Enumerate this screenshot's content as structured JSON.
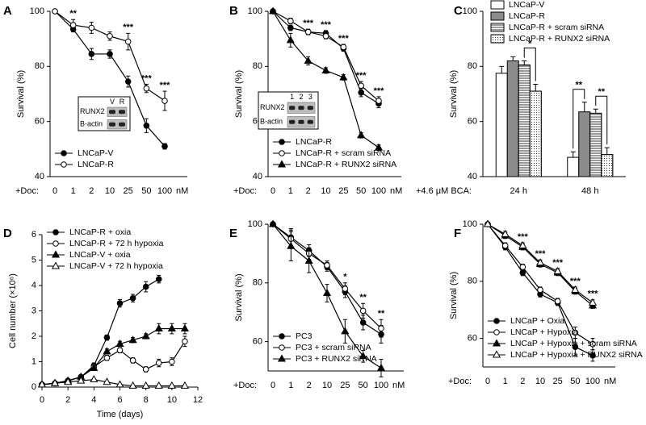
{
  "chart_data": [
    {
      "type": "line",
      "panel_label": "A",
      "categories": [
        "0",
        "1",
        "2",
        "10",
        "25",
        "50",
        "100"
      ],
      "x_prefix": "+Doc:",
      "x_unit": "nM",
      "ylabel": "Survival (%)",
      "ylim": [
        40,
        100
      ],
      "yticks": [
        40,
        60,
        80,
        100
      ],
      "series": [
        {
          "name": "LNCaP-V",
          "color": "#000000",
          "marker": "circle",
          "filled": true,
          "values": [
            100,
            93.5,
            84.5,
            84.5,
            74.5,
            58.5,
            51
          ],
          "errors": [
            0,
            1,
            2,
            1.5,
            2,
            2.5,
            1
          ]
        },
        {
          "name": "LNCaP-R",
          "color": "#000000",
          "marker": "circle",
          "filled": false,
          "values": [
            100,
            95,
            94,
            91,
            89,
            72,
            67.5
          ],
          "errors": [
            0,
            2,
            2,
            1.5,
            3,
            1.5,
            3.5
          ]
        }
      ],
      "significance": [
        null,
        "**",
        null,
        null,
        "***",
        "***",
        "***"
      ],
      "legend_position": "lower left",
      "inset": {
        "rows": [
          "RUNX2",
          "B-actin"
        ],
        "columns": [
          "V",
          "R"
        ]
      }
    },
    {
      "type": "line",
      "panel_label": "B",
      "categories": [
        "0",
        "1",
        "2",
        "10",
        "25",
        "50",
        "100"
      ],
      "x_prefix": "+Doc:",
      "x_unit": "nM",
      "ylabel": "Survival (%)",
      "ylim": [
        40,
        100
      ],
      "yticks": [
        40,
        60,
        80,
        100
      ],
      "series": [
        {
          "name": "LNCaP-R",
          "color": "#000000",
          "marker": "circle",
          "filled": true,
          "values": [
            100,
            94,
            92.5,
            92,
            86.5,
            70.5,
            66.5
          ],
          "errors": [
            0,
            1,
            1,
            1,
            1,
            1.5,
            1.5
          ]
        },
        {
          "name": "LNCaP-R + scram siRNA",
          "color": "#000000",
          "marker": "circle",
          "filled": false,
          "values": [
            100,
            96.5,
            92.5,
            91,
            87,
            73,
            67.5
          ],
          "errors": [
            0,
            1,
            1,
            1,
            1,
            1.5,
            1.5
          ]
        },
        {
          "name": "LNCaP-R + RUNX2 siRNA",
          "color": "#000000",
          "marker": "triangle",
          "filled": true,
          "values": [
            100,
            89.5,
            82,
            78.5,
            76,
            55,
            50.5
          ],
          "errors": [
            0,
            2.5,
            1.5,
            1,
            1,
            1,
            1
          ]
        }
      ],
      "significance": [
        null,
        null,
        "***",
        "***",
        "***",
        "***",
        "***"
      ],
      "legend_position": "lower left",
      "inset": {
        "rows": [
          "RUNX2",
          "B-actin"
        ],
        "columns": [
          "1",
          "2",
          "3"
        ]
      }
    },
    {
      "type": "bar",
      "panel_label": "C",
      "categories": [
        "24 h",
        "48 h"
      ],
      "x_prefix": "+4.6 μM BCA:",
      "ylabel": "Survival (%)",
      "ylim": [
        40,
        100
      ],
      "yticks": [
        40,
        60,
        80,
        100
      ],
      "series": [
        {
          "name": "LNCaP-V",
          "color": "#ffffff",
          "pattern": "none",
          "values": [
            77.5,
            47
          ],
          "errors": [
            2.5,
            2
          ]
        },
        {
          "name": "LNCaP-R",
          "color": "#8c8c8c",
          "pattern": "none",
          "values": [
            82,
            63.5
          ],
          "errors": [
            1.5,
            3.5
          ]
        },
        {
          "name": "LNCaP-R + scram siRNA",
          "color": "#ffffff",
          "pattern": "hlines",
          "values": [
            80.5,
            63
          ],
          "errors": [
            1.5,
            1.5
          ]
        },
        {
          "name": "LNCaP-R + RUNX2 siRNA",
          "color": "#ffffff",
          "pattern": "dots",
          "values": [
            71,
            48
          ],
          "errors": [
            2.5,
            2.5
          ]
        }
      ],
      "significance": [
        {
          "category": "24 h",
          "series": [
            "LNCaP-R + scram siRNA",
            "LNCaP-R + RUNX2 siRNA"
          ],
          "text": "*"
        },
        {
          "category": "48 h",
          "series": [
            "LNCaP-V",
            "LNCaP-R"
          ],
          "text": "**"
        },
        {
          "category": "48 h",
          "series": [
            "LNCaP-R + scram siRNA",
            "LNCaP-R + RUNX2 siRNA"
          ],
          "text": "**"
        }
      ],
      "legend_position": "upper left"
    },
    {
      "type": "line",
      "panel_label": "D",
      "xlabel": "Time (days)",
      "ylabel": "Cell number (×10⁶)",
      "xlim": [
        0,
        12
      ],
      "xticks": [
        0,
        2,
        4,
        6,
        8,
        10,
        12
      ],
      "ylim": [
        0,
        6
      ],
      "yticks": [
        0,
        1,
        2,
        3,
        4,
        5,
        6
      ],
      "series": [
        {
          "name": "LNCaP-R + oxia",
          "color": "#000000",
          "marker": "circle",
          "filled": true,
          "x": [
            0,
            1,
            2,
            3,
            4,
            5,
            6,
            7,
            8,
            9
          ],
          "values": [
            0.1,
            0.15,
            0.25,
            0.4,
            0.85,
            1.95,
            3.3,
            3.5,
            3.95,
            4.25
          ],
          "errors": [
            0.05,
            0.05,
            0.05,
            0.05,
            0.1,
            0.1,
            0.15,
            0.15,
            0.2,
            0.15
          ]
        },
        {
          "name": "LNCaP-R + 72 h hypoxia",
          "color": "#000000",
          "marker": "circle",
          "filled": false,
          "x": [
            0,
            1,
            2,
            3,
            4,
            5,
            6,
            7,
            8,
            9,
            10,
            11
          ],
          "values": [
            0.1,
            0.15,
            0.25,
            0.4,
            0.8,
            1.15,
            1.45,
            1.05,
            0.7,
            0.95,
            1.0,
            1.8
          ],
          "errors": [
            0.05,
            0.05,
            0.05,
            0.05,
            0.1,
            0.1,
            0.1,
            0.1,
            0.1,
            0.15,
            0.15,
            0.2
          ]
        },
        {
          "name": "LNCaP-V + oxia",
          "color": "#000000",
          "marker": "triangle",
          "filled": true,
          "x": [
            0,
            1,
            2,
            3,
            4,
            5,
            6,
            7,
            8,
            9,
            10,
            11
          ],
          "values": [
            0.1,
            0.15,
            0.25,
            0.4,
            0.75,
            1.4,
            1.7,
            1.85,
            2.0,
            2.3,
            2.3,
            2.3
          ],
          "errors": [
            0.05,
            0.05,
            0.05,
            0.05,
            0.1,
            0.1,
            0.1,
            0.1,
            0.1,
            0.2,
            0.2,
            0.2
          ]
        },
        {
          "name": "LNCaP-V + 72 h hypoxia",
          "color": "#000000",
          "marker": "triangle",
          "filled": false,
          "x": [
            0,
            1,
            2,
            3,
            4,
            5,
            6,
            7,
            8,
            9,
            10,
            11
          ],
          "values": [
            0.1,
            0.15,
            0.2,
            0.25,
            0.3,
            0.2,
            0.1,
            0.05,
            0.05,
            0.05,
            0.05,
            0.05
          ],
          "errors": [
            0.02,
            0.02,
            0.02,
            0.03,
            0.03,
            0.03,
            0.02,
            0.02,
            0.02,
            0.02,
            0.02,
            0.02
          ]
        }
      ],
      "legend_position": "upper left"
    },
    {
      "type": "line",
      "panel_label": "E",
      "categories": [
        "0",
        "1",
        "2",
        "10",
        "25",
        "50",
        "100"
      ],
      "x_prefix": "+Doc:",
      "x_unit": "nM",
      "ylabel": "Survival (%)",
      "ylim": [
        50,
        100
      ],
      "yticks": [
        60,
        80,
        100
      ],
      "series": [
        {
          "name": "PC3",
          "color": "#000000",
          "marker": "circle",
          "filled": true,
          "values": [
            100,
            95.5,
            91,
            85.5,
            77,
            66.5,
            62.5
          ],
          "errors": [
            0,
            3,
            2,
            1.5,
            2,
            2.5,
            3
          ]
        },
        {
          "name": "PC3 + scram siRNA",
          "color": "#000000",
          "marker": "circle",
          "filled": false,
          "values": [
            100,
            95,
            90,
            86,
            78,
            70.5,
            64.5
          ],
          "errors": [
            0,
            3,
            2,
            1.5,
            2,
            2.5,
            3
          ]
        },
        {
          "name": "PC3 + RUNX2 siRNA",
          "color": "#000000",
          "marker": "triangle",
          "filled": true,
          "values": [
            100,
            92.5,
            87.5,
            76.5,
            63.5,
            55,
            51
          ],
          "errors": [
            0,
            5,
            4,
            3,
            4,
            2,
            3
          ]
        }
      ],
      "significance": [
        null,
        null,
        null,
        null,
        "*",
        "**",
        "**"
      ],
      "legend_position": "lower left"
    },
    {
      "type": "line",
      "panel_label": "F",
      "categories": [
        "0",
        "1",
        "2",
        "10",
        "25",
        "50",
        "100"
      ],
      "x_prefix": "+Doc:",
      "x_unit": "nM",
      "ylabel": "Survival (%)",
      "ylim": [
        50,
        100
      ],
      "yticks": [
        60,
        80,
        100
      ],
      "series": [
        {
          "name": "LNCaP + Oxia",
          "color": "#000000",
          "marker": "circle",
          "filled": true,
          "values": [
            100,
            92,
            83,
            75.5,
            72.5,
            57,
            54
          ],
          "errors": [
            0,
            1,
            1,
            1,
            1,
            3,
            2
          ]
        },
        {
          "name": "LNCaP + Hypoxia",
          "color": "#000000",
          "marker": "circle",
          "filled": false,
          "values": [
            100,
            92.5,
            85,
            77,
            73,
            62,
            58
          ],
          "errors": [
            0,
            1,
            1,
            1,
            1,
            2,
            2
          ]
        },
        {
          "name": "LNCaP + Hypoxia + scram siRNA",
          "color": "#000000",
          "marker": "triangle",
          "filled": true,
          "values": [
            100,
            96,
            92,
            86,
            83,
            76.5,
            71.5
          ],
          "errors": [
            0,
            1,
            1,
            1,
            1,
            1,
            1
          ]
        },
        {
          "name": "LNCaP + Hypoxia + RUNX2 siRNA",
          "color": "#000000",
          "marker": "triangle",
          "filled": false,
          "values": [
            100,
            96.5,
            92.5,
            86.5,
            83.5,
            77,
            72.5
          ],
          "errors": [
            0,
            1,
            1,
            1,
            1,
            1,
            1
          ]
        }
      ],
      "significance": [
        null,
        null,
        "***",
        "***",
        "***",
        "***",
        "***"
      ],
      "legend_position": "lower left"
    }
  ]
}
